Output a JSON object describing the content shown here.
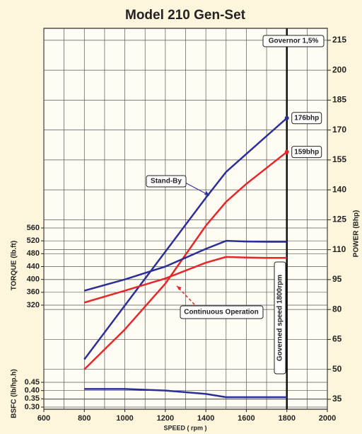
{
  "chart_data": {
    "type": "line",
    "title": "Model 210 Gen-Set",
    "x_label": "SPEED ( rpm )",
    "y_label": "TORQUE (lb.ft)",
    "y2_label": "POWER (Bhp)",
    "y3_label": "BSFC (lb/hp.h)",
    "x": [
      800,
      1000,
      1200,
      1400,
      1500,
      1600,
      1700,
      1800
    ],
    "xlim": [
      600,
      2000
    ],
    "xticks": [
      600,
      800,
      1000,
      1200,
      1400,
      1600,
      1800,
      2000
    ],
    "xgrid": [
      600,
      700,
      800,
      900,
      1000,
      1100,
      1200,
      1300,
      1400,
      1500,
      1600,
      1700,
      1800,
      1900,
      2000
    ],
    "ylim": [
      320,
      560
    ],
    "yticks": [
      320,
      360,
      400,
      440,
      480,
      520,
      560
    ],
    "y2lim": [
      30,
      221
    ],
    "y2ticks": [
      35,
      50,
      65,
      80,
      95,
      110,
      125,
      140,
      155,
      170,
      185,
      200,
      215
    ],
    "y3lim": [
      0.3,
      0.45
    ],
    "y3ticks": [
      {
        "value": 0.3,
        "label": "0.30"
      },
      {
        "value": 0.35,
        "label": "0.35"
      },
      {
        "value": 0.4,
        "label": "0.40"
      },
      {
        "value": 0.45,
        "label": "0.45"
      }
    ],
    "grid": true,
    "governor_x": 1800,
    "series": [
      {
        "color": "#2b2f9a",
        "axis": "y2",
        "values": [
          55,
          82,
          109,
          136,
          149,
          158,
          167,
          176
        ],
        "value_labels": [
          null,
          null,
          null,
          null,
          null,
          null,
          null,
          "176bhp"
        ]
      },
      {
        "color": "#e8262a",
        "axis": "y2",
        "values": [
          50,
          70,
          93,
          122,
          134,
          143,
          151,
          159
        ],
        "value_labels": [
          null,
          null,
          null,
          null,
          null,
          null,
          null,
          "159bhp"
        ]
      },
      {
        "color": "#2b2f9a",
        "axis": "y",
        "values": [
          365,
          400,
          440,
          495,
          520,
          518,
          517,
          517
        ]
      },
      {
        "color": "#e8262a",
        "axis": "y",
        "values": [
          328,
          365,
          403,
          452,
          470,
          468,
          467,
          467
        ]
      },
      {
        "color": "#2b2f9a",
        "axis": "y3",
        "values": [
          0.41,
          0.41,
          0.4,
          0.38,
          0.36,
          0.36,
          0.36,
          0.36
        ]
      }
    ],
    "annotations": [
      "Governor 1,5%",
      "Stand-By",
      "Continuous Operation",
      "Governed speed 1800rpm"
    ]
  }
}
